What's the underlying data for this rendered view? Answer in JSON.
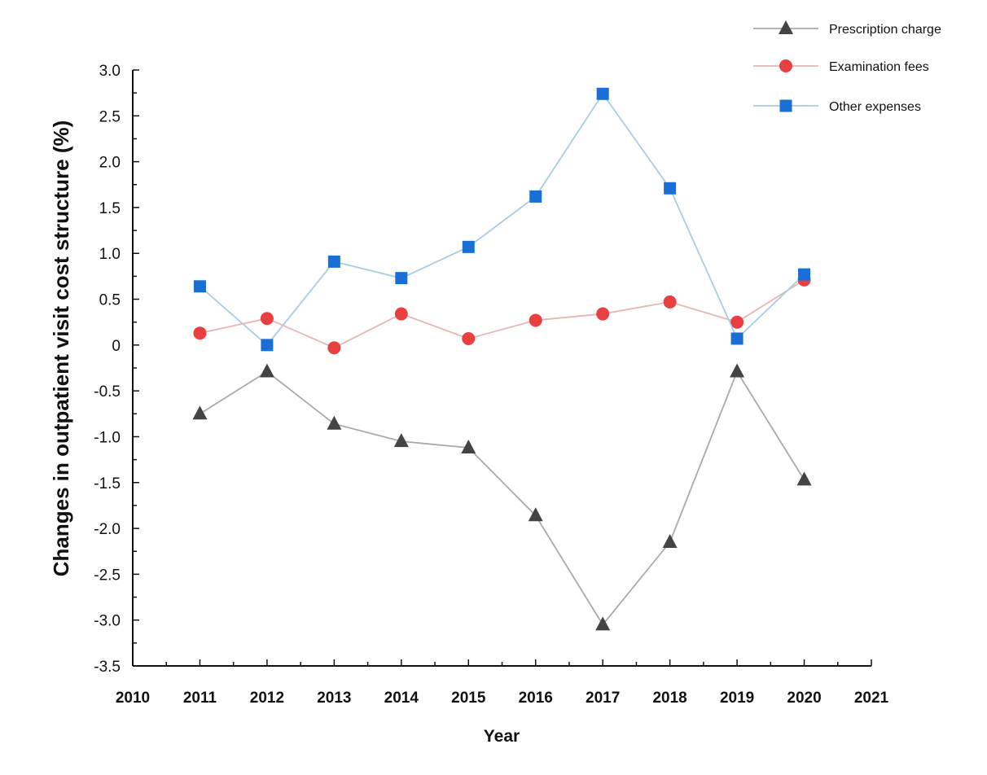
{
  "chart_data": {
    "type": "line",
    "title": "",
    "xlabel": "Year",
    "ylabel": "Changes in outpatient visit cost structure (%)",
    "xlim": [
      2010,
      2021
    ],
    "ylim": [
      -3.5,
      3.0
    ],
    "x_ticks": [
      "2010",
      "2011",
      "2012",
      "2013",
      "2014",
      "2015",
      "2016",
      "2017",
      "2018",
      "2019",
      "2020",
      "2021"
    ],
    "y_ticks": [
      "3.0",
      "2.5",
      "2.0",
      "1.5",
      "1.0",
      "0.5",
      "0",
      "-0.5",
      "-1.0",
      "-1.5",
      "-2.0",
      "-2.5",
      "-3.0",
      "-3.5"
    ],
    "grid": false,
    "legend_position": "top-right",
    "x": [
      2011,
      2012,
      2013,
      2014,
      2015,
      2016,
      2017,
      2018,
      2019,
      2020
    ],
    "series": [
      {
        "name": "Prescription charge",
        "marker": "triangle",
        "color": "#444444",
        "line_color": "#aaaaaa",
        "values": [
          -0.75,
          -0.29,
          -0.86,
          -1.05,
          -1.12,
          -1.86,
          -3.05,
          -2.15,
          -0.29,
          -1.47
        ]
      },
      {
        "name": "Examination fees",
        "marker": "circle",
        "color": "#e84040",
        "line_color": "#e8b4b4",
        "values": [
          0.13,
          0.29,
          -0.03,
          0.34,
          0.07,
          0.27,
          0.34,
          0.47,
          0.25,
          0.71
        ]
      },
      {
        "name": "Other expenses",
        "marker": "square",
        "color": "#1a6fd6",
        "line_color": "#a8cce0",
        "values": [
          0.64,
          0.0,
          0.91,
          0.73,
          1.07,
          1.62,
          2.74,
          1.71,
          0.07,
          0.77
        ]
      }
    ]
  }
}
